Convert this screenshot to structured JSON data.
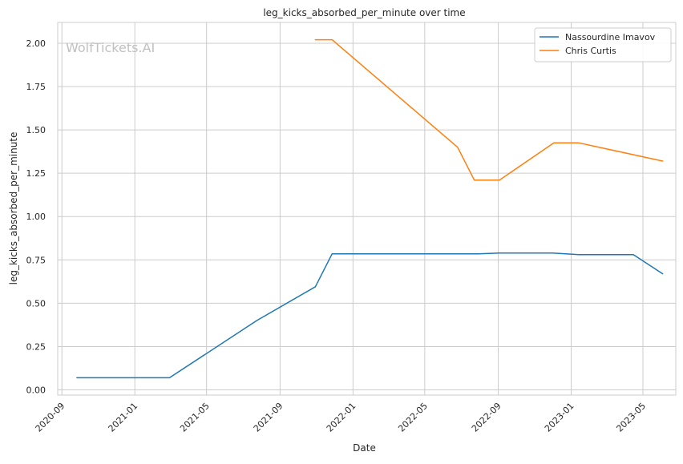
{
  "chart_data": {
    "type": "line",
    "title": "leg_kicks_absorbed_per_minute over time",
    "xlabel": "Date",
    "ylabel": "leg_kicks_absorbed_per_minute",
    "watermark": "WolfTickets.AI",
    "x_type": "date",
    "xlim": [
      "2020-08-25",
      "2023-06-25"
    ],
    "ylim": [
      -0.03,
      2.12
    ],
    "x_ticks": [
      "2020-09-01",
      "2021-01-01",
      "2021-05-01",
      "2021-09-01",
      "2022-01-01",
      "2022-05-01",
      "2022-09-01",
      "2023-01-01",
      "2023-05-01"
    ],
    "x_tick_labels": [
      "2020-09",
      "2021-01",
      "2021-05",
      "2021-09",
      "2022-01",
      "2022-05",
      "2022-09",
      "2023-01",
      "2023-05"
    ],
    "y_ticks": [
      0.0,
      0.25,
      0.5,
      0.75,
      1.0,
      1.25,
      1.5,
      1.75,
      2.0
    ],
    "y_tick_labels": [
      "0.00",
      "0.25",
      "0.50",
      "0.75",
      "1.00",
      "1.25",
      "1.50",
      "1.75",
      "2.00"
    ],
    "grid": true,
    "legend_position": "top-right",
    "series": [
      {
        "name": "Nassourdine Imavov",
        "color": "#1f77b4",
        "points": [
          {
            "x": "2020-09-26",
            "y": 0.07
          },
          {
            "x": "2021-02-28",
            "y": 0.07
          },
          {
            "x": "2021-07-24",
            "y": 0.4
          },
          {
            "x": "2021-10-30",
            "y": 0.595
          },
          {
            "x": "2021-11-27",
            "y": 0.785
          },
          {
            "x": "2022-07-30",
            "y": 0.785
          },
          {
            "x": "2022-09-03",
            "y": 0.79
          },
          {
            "x": "2022-12-01",
            "y": 0.79
          },
          {
            "x": "2023-01-14",
            "y": 0.78
          },
          {
            "x": "2023-04-15",
            "y": 0.78
          },
          {
            "x": "2023-06-03",
            "y": 0.67
          }
        ]
      },
      {
        "name": "Chris Curtis",
        "color": "#ff7f0e",
        "points": [
          {
            "x": "2021-10-30",
            "y": 2.02
          },
          {
            "x": "2021-11-27",
            "y": 2.02
          },
          {
            "x": "2022-06-25",
            "y": 1.4
          },
          {
            "x": "2022-07-23",
            "y": 1.21
          },
          {
            "x": "2022-09-03",
            "y": 1.21
          },
          {
            "x": "2022-12-03",
            "y": 1.425
          },
          {
            "x": "2023-01-14",
            "y": 1.425
          },
          {
            "x": "2023-06-03",
            "y": 1.32
          }
        ]
      }
    ]
  }
}
